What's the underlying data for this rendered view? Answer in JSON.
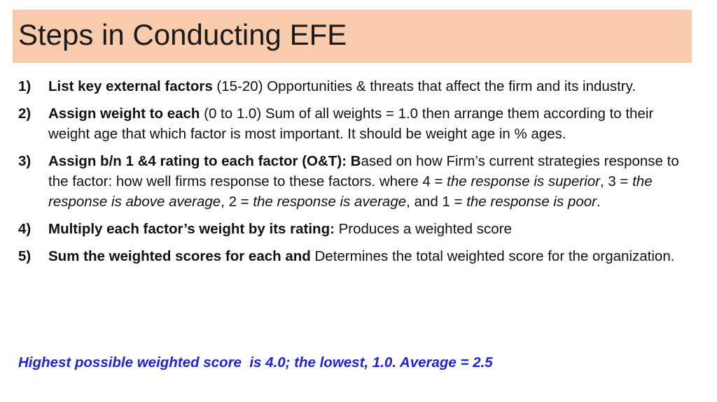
{
  "header": {
    "title": "Steps in Conducting EFE"
  },
  "items": [
    {
      "number": "1)",
      "runs": [
        {
          "text": "List key external factors",
          "bold": true
        },
        {
          "text": " (15-20) Opportunities & threats that affect the firm and its industry."
        }
      ]
    },
    {
      "number": "2)",
      "runs": [
        {
          "text": "Assign weight to each",
          "bold": true
        },
        {
          "text": " (0 to 1.0)  Sum of all weights = 1.0 then arrange them according to their weight age that which factor is most important. It should be weight age in % ages."
        }
      ]
    },
    {
      "number": "3)",
      "runs": [
        {
          "text": "Assign b/n 1 &4 rating to each factor (O&T): B",
          "bold": true
        },
        {
          "text": "ased on how Firm’s current strategies response to the factor: how well firms response to these factors. where 4 = "
        },
        {
          "text": "the response is superior",
          "italic": true
        },
        {
          "text": ", 3 = "
        },
        {
          "text": "the response is above average",
          "italic": true
        },
        {
          "text": ", 2 = "
        },
        {
          "text": "the response is average",
          "italic": true
        },
        {
          "text": ", and 1 = "
        },
        {
          "text": "the response is poor",
          "italic": true
        },
        {
          "text": "."
        }
      ]
    },
    {
      "number": "4)",
      "runs": [
        {
          "text": "Multiply each factor’s weight by its rating:",
          "bold": true
        },
        {
          "text": " Produces a weighted score"
        }
      ]
    },
    {
      "number": "5)",
      "runs": [
        {
          "text": "Sum the weighted scores for each and",
          "bold": true
        },
        {
          "text": " Determines the total weighted score for the organization."
        }
      ]
    }
  ],
  "footer": {
    "text": "Highest possible weighted score  is 4.0; the lowest, 1.0. Average = 2.5"
  }
}
